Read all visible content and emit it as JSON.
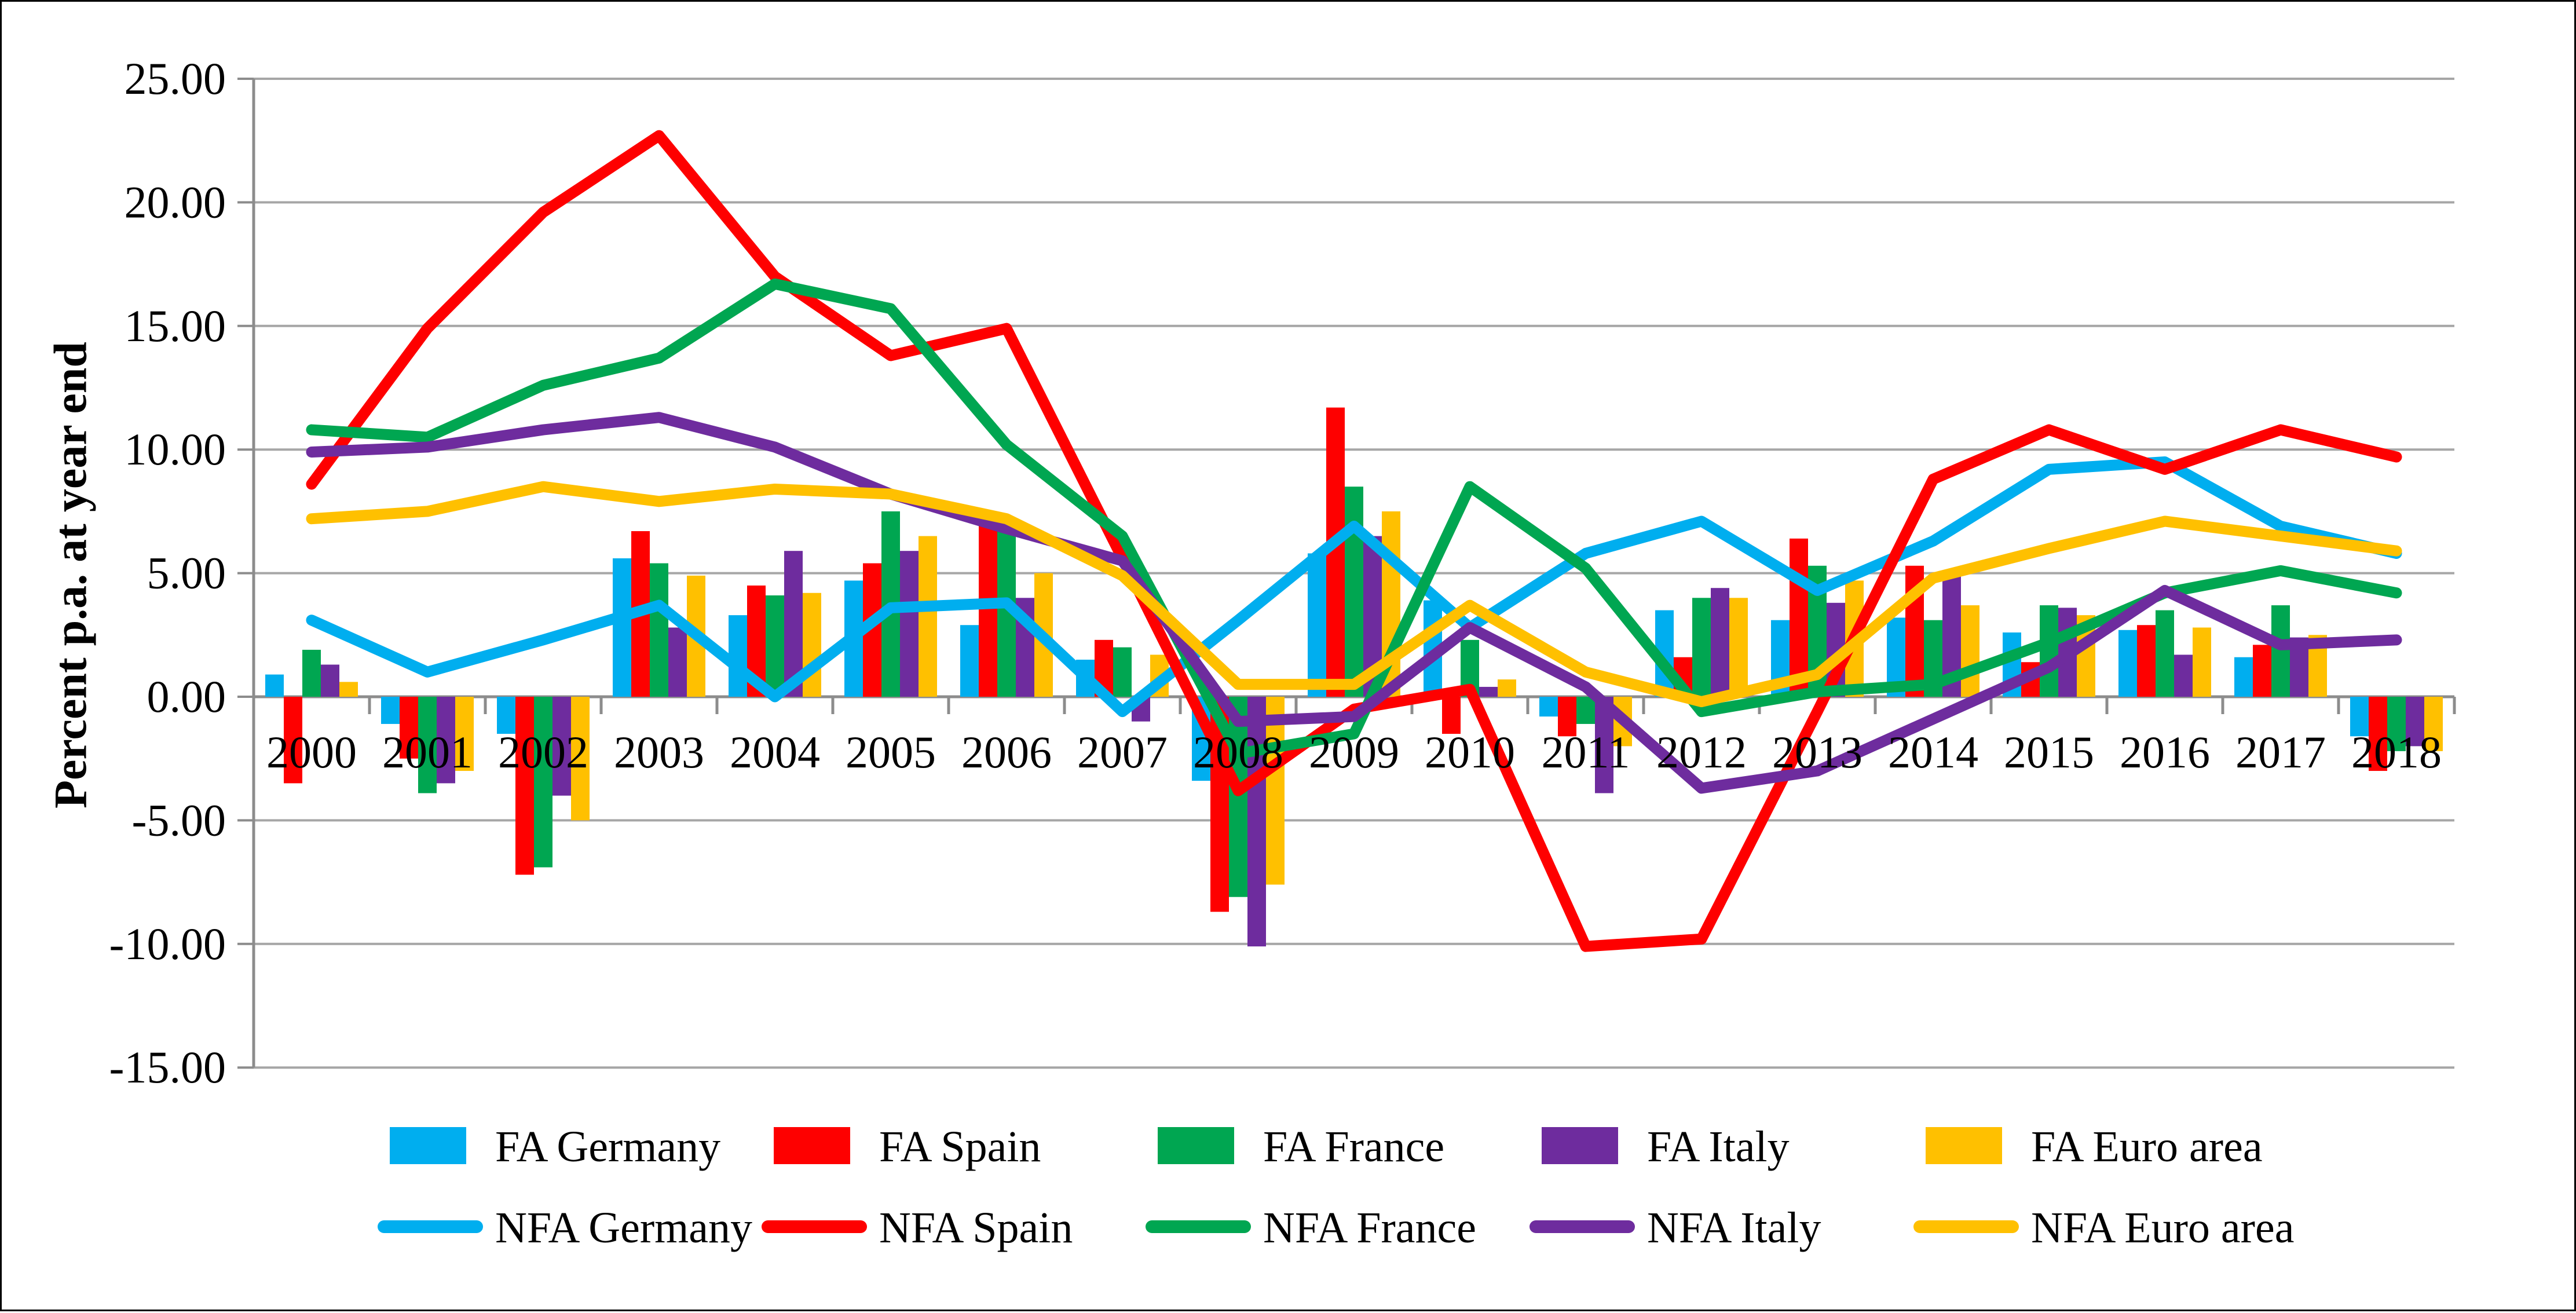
{
  "chart_data": {
    "type": "combo-bar-line",
    "title": "",
    "ylabel": "Percent p.a. at year end",
    "xlabel": "",
    "categories": [
      "2000",
      "2001",
      "2002",
      "2003",
      "2004",
      "2005",
      "2006",
      "2007",
      "2008",
      "2009",
      "2010",
      "2011",
      "2012",
      "2013",
      "2014",
      "2015",
      "2016",
      "2017",
      "2018"
    ],
    "y_axis": {
      "min": -15,
      "max": 25,
      "step": 5,
      "tick_labels": [
        "25.00",
        "20.00",
        "15.00",
        "10.00",
        "5.00",
        "0.00",
        "-5.00",
        "-10.00",
        "-15.00"
      ]
    },
    "grid": true,
    "legend_position": "bottom-two-rows",
    "colors": {
      "germany": "#00AEEF",
      "spain": "#FE0000",
      "france": "#00A651",
      "italy": "#6E2C9E",
      "euro_area": "#FFC000",
      "gridline": "#A6A6A6",
      "axis": "#8C8C8C",
      "text": "#000000"
    },
    "bar_series": [
      {
        "name": "FA Germany",
        "color_key": "germany",
        "values": [
          0.9,
          -1.1,
          -1.5,
          5.6,
          3.3,
          4.7,
          2.9,
          1.5,
          -3.4,
          5.8,
          3.9,
          -0.8,
          3.5,
          3.1,
          3.2,
          2.6,
          2.7,
          1.6,
          -1.6
        ]
      },
      {
        "name": "FA Spain",
        "color_key": "spain",
        "values": [
          -3.5,
          -2.5,
          -7.2,
          6.7,
          4.5,
          5.4,
          7.3,
          2.3,
          -8.7,
          11.7,
          -1.5,
          -1.6,
          1.6,
          6.4,
          5.3,
          1.4,
          2.9,
          2.1,
          -3.0
        ]
      },
      {
        "name": "FA France",
        "color_key": "france",
        "values": [
          1.9,
          -3.9,
          -6.9,
          5.4,
          4.1,
          7.5,
          6.7,
          2.0,
          -8.1,
          8.5,
          2.3,
          -1.1,
          4.0,
          5.3,
          3.1,
          3.7,
          3.5,
          3.7,
          -2.2
        ]
      },
      {
        "name": "FA Italy",
        "color_key": "italy",
        "values": [
          1.3,
          -3.5,
          -4.0,
          2.8,
          5.9,
          5.9,
          4.0,
          -1.0,
          -10.1,
          6.5,
          0.4,
          -3.9,
          4.4,
          3.8,
          4.9,
          3.6,
          1.7,
          2.4,
          -2.0
        ]
      },
      {
        "name": "FA Euro area",
        "color_key": "euro_area",
        "values": [
          0.6,
          -3.0,
          -5.0,
          4.9,
          4.2,
          6.5,
          5.0,
          1.7,
          -7.6,
          7.5,
          0.7,
          -2.0,
          4.0,
          4.7,
          3.7,
          3.3,
          2.8,
          2.5,
          -2.2
        ]
      }
    ],
    "line_series": [
      {
        "name": "NFA Germany",
        "color_key": "germany",
        "values": [
          3.1,
          1.0,
          2.3,
          3.7,
          0.0,
          3.6,
          3.8,
          -0.6,
          3.1,
          6.9,
          2.8,
          5.8,
          7.1,
          4.3,
          6.3,
          9.2,
          9.5,
          6.9,
          5.8
        ]
      },
      {
        "name": "NFA Spain",
        "color_key": "spain",
        "values": [
          8.6,
          14.9,
          19.6,
          22.7,
          17.0,
          13.8,
          14.9,
          5.6,
          -3.8,
          -0.5,
          0.3,
          -10.1,
          -9.8,
          -0.6,
          8.8,
          10.8,
          9.2,
          10.8,
          9.7
        ]
      },
      {
        "name": "NFA France",
        "color_key": "france",
        "values": [
          10.8,
          10.5,
          12.6,
          13.7,
          16.7,
          15.7,
          10.2,
          6.5,
          -2.3,
          -1.5,
          8.5,
          5.2,
          -0.6,
          0.2,
          0.5,
          2.2,
          4.2,
          5.1,
          4.2
        ]
      },
      {
        "name": "NFA Italy",
        "color_key": "italy",
        "values": [
          9.9,
          10.1,
          10.8,
          11.3,
          10.1,
          8.2,
          6.8,
          5.5,
          -1.0,
          -0.8,
          2.8,
          0.4,
          -3.7,
          -3.0,
          -0.9,
          1.2,
          4.3,
          2.1,
          2.3
        ]
      },
      {
        "name": "NFA Euro area",
        "color_key": "euro_area",
        "values": [
          7.2,
          7.5,
          8.5,
          7.9,
          8.4,
          8.2,
          7.2,
          4.9,
          0.5,
          0.5,
          3.7,
          1.0,
          -0.2,
          0.9,
          4.8,
          6.0,
          7.1,
          6.5,
          5.9
        ]
      }
    ]
  }
}
